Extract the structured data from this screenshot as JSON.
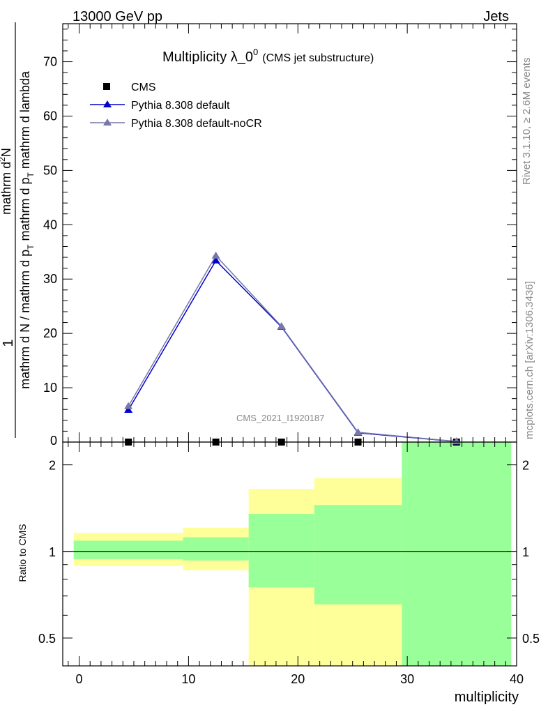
{
  "header": {
    "left": "13000 GeV pp",
    "right": "Jets"
  },
  "side_labels": {
    "rivet": "Rivet 3.1.10, ≥ 2.6M events",
    "mcplots": "mcplots.cern.ch [arXiv:1306.3436]"
  },
  "chart_data": [
    {
      "type": "line",
      "title_main": "Multiplicity λ_0",
      "title_sup": "0",
      "title_small": "(CMS jet substructure)",
      "watermark": "CMS_2021_I1920187",
      "ylabel_numerator": "mathrm d",
      "ylabel_numerator_sup": "2",
      "ylabel_numerator_end": "N",
      "ylabel_denominator": "mathrm d N / mathrm d p",
      "ylabel_denominator_sub": "T",
      "ylabel_denominator_mid": " mathrm d p",
      "ylabel_denominator_sub2": "T",
      "ylabel_denominator_end": " mathrm d lambda",
      "ylabel_one": "1",
      "xlim": [
        -1.5,
        40
      ],
      "ylim": [
        0,
        77
      ],
      "y_ticks": [
        10,
        20,
        30,
        40,
        50,
        60,
        70
      ],
      "y_tick_labels": [
        "10",
        "20",
        "30",
        "40",
        "50",
        "60",
        "70"
      ],
      "y_zero_label": "0",
      "x": [
        4.5,
        12.5,
        18.5,
        25.5,
        34.5
      ],
      "series": [
        {
          "name": "CMS",
          "values": [
            0,
            0,
            0,
            0,
            0
          ],
          "color": "#000000",
          "marker": "square"
        },
        {
          "name": "Pythia 8.308 default",
          "values": [
            5.9,
            33.4,
            21.2,
            1.7,
            0.1
          ],
          "color": "#0000cc",
          "marker": "triangle"
        },
        {
          "name": "Pythia 8.308 default-noCR",
          "values": [
            6.6,
            34.3,
            21.3,
            1.8,
            0.12
          ],
          "color": "#7777aa",
          "marker": "triangle"
        }
      ]
    },
    {
      "type": "area",
      "ylabel": "Ratio to CMS",
      "xlabel": "multiplicity",
      "ylim": [
        0.4,
        2.4
      ],
      "log_y": true,
      "x_ticks": [
        0,
        10,
        20,
        30,
        40
      ],
      "x_tick_labels": [
        "0",
        "10",
        "20",
        "30",
        "40"
      ],
      "y_ticks": [
        0.5,
        1,
        2
      ],
      "y_tick_labels": [
        "0.5",
        "1",
        "2"
      ],
      "bins": [
        {
          "lo": -0.5,
          "hi": 9.5,
          "yellow": [
            0.89,
            1.16
          ],
          "green": [
            0.94,
            1.09
          ]
        },
        {
          "lo": 9.5,
          "hi": 15.5,
          "yellow": [
            0.86,
            1.21
          ],
          "green": [
            0.93,
            1.12
          ]
        },
        {
          "lo": 15.5,
          "hi": 21.5,
          "yellow": [
            0.4,
            1.65
          ],
          "green": [
            0.75,
            1.35
          ]
        },
        {
          "lo": 21.5,
          "hi": 29.5,
          "yellow": [
            0.4,
            1.8
          ],
          "green": [
            0.655,
            1.45
          ]
        },
        {
          "lo": 29.5,
          "hi": 39.5,
          "yellow": [
            0.4,
            2.4
          ],
          "green": [
            0.4,
            2.4
          ]
        }
      ],
      "colors": {
        "yellow": "#ffff99",
        "green": "#99ff99"
      }
    }
  ]
}
